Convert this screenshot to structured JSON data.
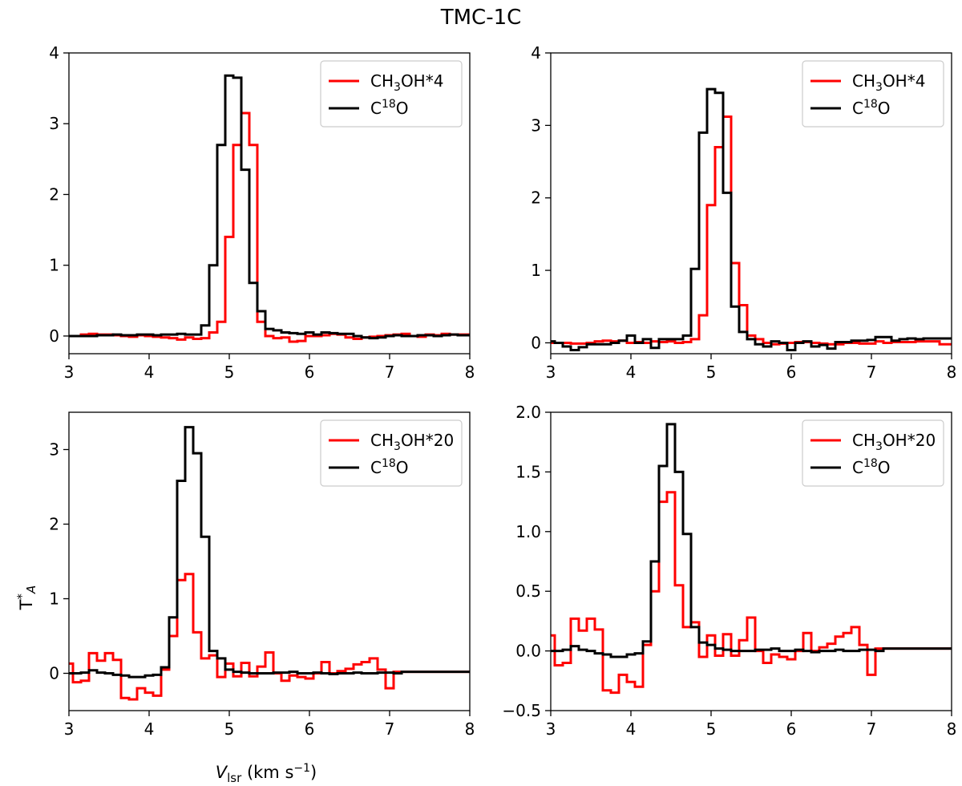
{
  "chart_data": {
    "type": "line",
    "title": "TMC-1C",
    "ylabel": "T*A",
    "xlabel": "Vlsr (km s⁻¹)",
    "colors": {
      "ch3oh": "#ff0000",
      "c18o": "#000000"
    },
    "x": [
      3.0,
      3.1,
      3.2,
      3.3,
      3.4,
      3.5,
      3.6,
      3.7,
      3.8,
      3.9,
      4.0,
      4.1,
      4.2,
      4.3,
      4.4,
      4.5,
      4.6,
      4.7,
      4.8,
      4.9,
      5.0,
      5.1,
      5.2,
      5.3,
      5.4,
      5.5,
      5.6,
      5.7,
      5.8,
      5.9,
      6.0,
      6.1,
      6.2,
      6.3,
      6.4,
      6.5,
      6.6,
      6.7,
      6.8,
      6.9,
      7.0,
      7.1,
      7.2,
      7.3,
      7.4,
      7.5,
      7.6,
      7.7,
      7.8,
      7.9,
      8.0
    ],
    "panels": [
      {
        "id": "top-left",
        "xlim": [
          3,
          8
        ],
        "ylim": [
          -0.25,
          4.0
        ],
        "xticks": [
          "3",
          "4",
          "5",
          "6",
          "7",
          "8"
        ],
        "yticks": [
          "0",
          "1",
          "2",
          "3",
          "4"
        ],
        "legend": [
          "CH3OH*4",
          "C18O"
        ],
        "series": [
          {
            "name": "CH3OH*4",
            "values": [
              0.0,
              0.0,
              0.02,
              0.03,
              0.02,
              0.02,
              0.01,
              0.0,
              -0.01,
              0.01,
              0.0,
              -0.01,
              -0.02,
              -0.03,
              -0.05,
              -0.02,
              -0.04,
              -0.03,
              0.05,
              0.2,
              1.4,
              2.7,
              3.15,
              2.7,
              0.2,
              0.0,
              -0.03,
              -0.02,
              -0.08,
              -0.07,
              0.0,
              0.0,
              0.01,
              0.03,
              0.02,
              -0.02,
              -0.04,
              -0.02,
              -0.01,
              0.0,
              0.01,
              0.02,
              0.03,
              0.0,
              -0.01,
              0.02,
              0.01,
              0.03,
              0.02,
              0.02,
              0.02
            ]
          },
          {
            "name": "C18O",
            "values": [
              0.0,
              0.0,
              0.0,
              0.0,
              0.01,
              0.01,
              0.02,
              0.01,
              0.01,
              0.02,
              0.02,
              0.01,
              0.02,
              0.02,
              0.03,
              0.02,
              0.02,
              0.15,
              1.0,
              2.7,
              3.68,
              3.65,
              2.35,
              0.75,
              0.35,
              0.1,
              0.08,
              0.05,
              0.04,
              0.03,
              0.05,
              0.02,
              0.05,
              0.04,
              0.03,
              0.03,
              0.0,
              -0.02,
              -0.03,
              -0.02,
              0.0,
              0.01,
              0.0,
              0.0,
              0.01,
              0.01,
              0.0,
              0.01,
              0.02,
              0.01,
              0.01
            ]
          }
        ]
      },
      {
        "id": "top-right",
        "xlim": [
          3,
          8
        ],
        "ylim": [
          -0.15,
          4.0
        ],
        "xticks": [
          "3",
          "4",
          "5",
          "6",
          "7",
          "8"
        ],
        "yticks": [
          "0",
          "1",
          "2",
          "3",
          "4"
        ],
        "legend": [
          "CH3OH*4",
          "C18O"
        ],
        "series": [
          {
            "name": "CH3OH*4",
            "values": [
              0.0,
              0.0,
              0.0,
              -0.01,
              -0.01,
              0.0,
              0.02,
              0.03,
              0.02,
              0.03,
              0.0,
              0.01,
              0.0,
              0.02,
              0.01,
              0.02,
              0.0,
              0.01,
              0.05,
              0.38,
              1.9,
              2.7,
              3.12,
              1.1,
              0.52,
              0.1,
              0.05,
              0.0,
              -0.02,
              -0.01,
              0.0,
              0.01,
              0.01,
              0.0,
              -0.01,
              -0.02,
              -0.02,
              0.0,
              0.0,
              -0.01,
              -0.01,
              0.02,
              0.0,
              0.01,
              0.01,
              0.01,
              0.02,
              0.02,
              0.02,
              -0.02,
              -0.02
            ]
          },
          {
            "name": "C18O",
            "values": [
              0.02,
              0.0,
              -0.05,
              -0.1,
              -0.06,
              -0.02,
              -0.02,
              -0.02,
              0.0,
              0.03,
              0.1,
              0.0,
              0.05,
              -0.07,
              0.05,
              0.05,
              0.05,
              0.1,
              1.02,
              2.9,
              3.5,
              3.45,
              2.07,
              0.5,
              0.15,
              0.05,
              -0.02,
              -0.05,
              0.02,
              0.0,
              -0.1,
              0.0,
              0.02,
              -0.05,
              -0.03,
              -0.08,
              0.01,
              0.01,
              0.03,
              0.03,
              0.04,
              0.08,
              0.08,
              0.03,
              0.05,
              0.06,
              0.05,
              0.06,
              0.06,
              0.06,
              0.06
            ]
          }
        ]
      },
      {
        "id": "bottom-left",
        "xlim": [
          3,
          8
        ],
        "ylim": [
          -0.5,
          3.5
        ],
        "xticks": [
          "3",
          "4",
          "5",
          "6",
          "7",
          "8"
        ],
        "yticks": [
          "0",
          "1",
          "2",
          "3"
        ],
        "legend": [
          "CH3OH*20",
          "C18O"
        ],
        "series": [
          {
            "name": "CH3OH*20",
            "values": [
              0.13,
              -0.12,
              -0.1,
              0.27,
              0.17,
              0.27,
              0.18,
              -0.33,
              -0.35,
              -0.2,
              -0.26,
              -0.3,
              0.05,
              0.5,
              1.25,
              1.33,
              0.55,
              0.2,
              0.24,
              -0.05,
              0.13,
              -0.04,
              0.14,
              -0.04,
              0.09,
              0.28,
              0.0,
              -0.1,
              -0.03,
              -0.05,
              -0.07,
              0.0,
              0.15,
              0.0,
              0.03,
              0.06,
              0.12,
              0.15,
              0.2,
              0.05,
              -0.2,
              0.02,
              0.02,
              0.02,
              0.02,
              0.02,
              0.02,
              0.02,
              0.02,
              0.02,
              0.02
            ]
          },
          {
            "name": "C18O",
            "values": [
              0.0,
              0.0,
              0.01,
              0.04,
              0.01,
              0.0,
              -0.02,
              -0.03,
              -0.05,
              -0.05,
              -0.03,
              -0.02,
              0.08,
              0.75,
              2.58,
              3.3,
              2.95,
              1.83,
              0.3,
              0.2,
              0.05,
              0.02,
              0.01,
              0.0,
              0.0,
              0.0,
              0.01,
              0.01,
              0.02,
              0.0,
              0.0,
              0.01,
              0.0,
              -0.01,
              0.0,
              0.0,
              0.01,
              0.0,
              0.0,
              0.01,
              0.01,
              0.0,
              0.02,
              0.02,
              0.02,
              0.02,
              0.02,
              0.02,
              0.02,
              0.02,
              0.02
            ]
          }
        ]
      },
      {
        "id": "bottom-right",
        "xlim": [
          3,
          8
        ],
        "ylim": [
          -0.5,
          2.0
        ],
        "xticks": [
          "3",
          "4",
          "5",
          "6",
          "7",
          "8"
        ],
        "yticks": [
          "−0.5",
          "0.0",
          "0.5",
          "1.0",
          "1.5",
          "2.0"
        ],
        "ytick_values": [
          -0.5,
          0.0,
          0.5,
          1.0,
          1.5,
          2.0
        ],
        "legend": [
          "CH3OH*20",
          "C18O"
        ],
        "series": [
          {
            "name": "CH3OH*20",
            "values": [
              0.13,
              -0.12,
              -0.1,
              0.27,
              0.17,
              0.27,
              0.18,
              -0.33,
              -0.35,
              -0.2,
              -0.26,
              -0.3,
              0.05,
              0.5,
              1.25,
              1.33,
              0.55,
              0.2,
              0.24,
              -0.05,
              0.13,
              -0.04,
              0.14,
              -0.04,
              0.09,
              0.28,
              0.0,
              -0.1,
              -0.03,
              -0.05,
              -0.07,
              0.0,
              0.15,
              0.0,
              0.03,
              0.06,
              0.12,
              0.15,
              0.2,
              0.05,
              -0.2,
              0.02,
              0.02,
              0.02,
              0.02,
              0.02,
              0.02,
              0.02,
              0.02,
              0.02,
              0.02
            ]
          },
          {
            "name": "C18O",
            "values": [
              0.0,
              0.0,
              0.01,
              0.04,
              0.01,
              0.0,
              -0.02,
              -0.03,
              -0.05,
              -0.05,
              -0.03,
              -0.02,
              0.08,
              0.75,
              1.55,
              1.9,
              1.5,
              0.98,
              0.2,
              0.07,
              0.05,
              0.02,
              0.01,
              0.0,
              0.0,
              0.0,
              0.01,
              0.01,
              0.02,
              0.0,
              0.0,
              0.01,
              0.0,
              -0.01,
              0.0,
              0.0,
              0.01,
              0.0,
              0.0,
              0.01,
              0.01,
              0.0,
              0.02,
              0.02,
              0.02,
              0.02,
              0.02,
              0.02,
              0.02,
              0.02,
              0.02
            ]
          }
        ]
      }
    ]
  }
}
